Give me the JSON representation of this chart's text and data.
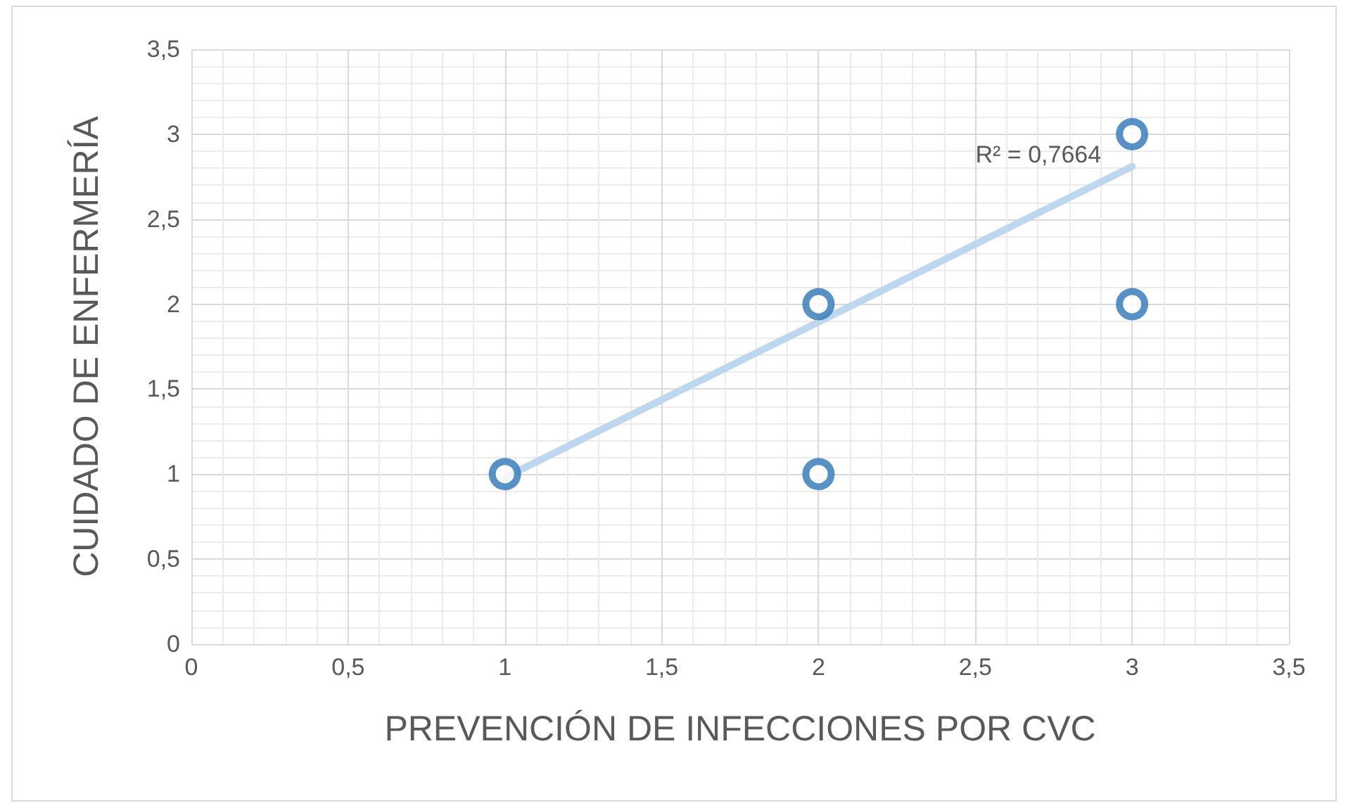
{
  "chart_data": {
    "type": "scatter",
    "xlabel": "PREVENCIÓN DE INFECCIONES POR CVC",
    "ylabel": "CUIDADO DE ENFERMERÍA",
    "xlim": [
      0,
      3.5
    ],
    "ylim": [
      0,
      3.5
    ],
    "xticks": [
      0,
      {
        "value": 0.5,
        "label": "0,5"
      },
      1,
      {
        "value": 1.5,
        "label": "1,5"
      },
      2,
      {
        "value": 2.5,
        "label": "2,5"
      },
      3,
      {
        "value": 3.5,
        "label": "3,5"
      }
    ],
    "yticks": [
      0,
      {
        "value": 0.5,
        "label": "0,5"
      },
      1,
      {
        "value": 1.5,
        "label": "1,5"
      },
      2,
      {
        "value": 2.5,
        "label": "2,5"
      },
      3,
      {
        "value": 3.5,
        "label": "3,5"
      }
    ],
    "grid": true,
    "marker": "circle",
    "series": [
      {
        "type": "scatter",
        "color": "#2e75b6",
        "x": [
          1,
          2,
          2,
          3,
          3
        ],
        "values": [
          1,
          1,
          2,
          2,
          3
        ]
      },
      {
        "type": "line",
        "color": "#bdd7ee",
        "x": [
          1,
          3
        ],
        "values": [
          0.98,
          2.81
        ],
        "marker": "none"
      }
    ],
    "annotations": [
      {
        "text": "R² = 0,7664",
        "x": 3,
        "y": 2.81
      }
    ]
  }
}
